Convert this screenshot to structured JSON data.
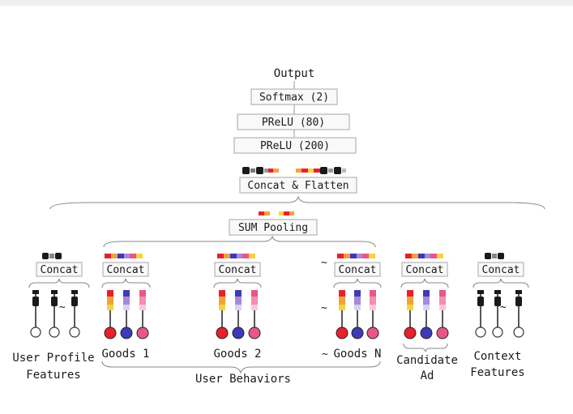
{
  "top_layers": {
    "output": "Output",
    "softmax": "Softmax (2)",
    "prelu_80": "PReLU (80)",
    "prelu_200": "PReLU (200)",
    "concat_flatten": "Concat & Flatten"
  },
  "pooling": {
    "label": "SUM Pooling"
  },
  "groups": {
    "user_profile": {
      "concat": "Concat",
      "label_line1": "User Profile",
      "label_line2": "Features"
    },
    "goods_1": {
      "concat": "Concat",
      "label": "Goods 1"
    },
    "goods_2": {
      "concat": "Concat",
      "label": "Goods 2"
    },
    "goods_n": {
      "concat": "Concat",
      "label": "Goods N"
    },
    "candidate_ad": {
      "concat": "Concat",
      "label_line1": "Candidate",
      "label_line2": "Ad"
    },
    "context": {
      "concat": "Concat",
      "label_line1": "Context",
      "label_line2": "Features"
    }
  },
  "user_behaviors_label": "User Behaviors",
  "ellipsis": "~",
  "colors": {
    "red": "#e8202c",
    "blue": "#3d3ab8",
    "pink": "#e8568a",
    "orange": "#f3a23a",
    "yellow": "#f6d33c",
    "violet": "#a78ad8",
    "dark": "#1a1a1a",
    "gray": "#9a9a9a"
  }
}
